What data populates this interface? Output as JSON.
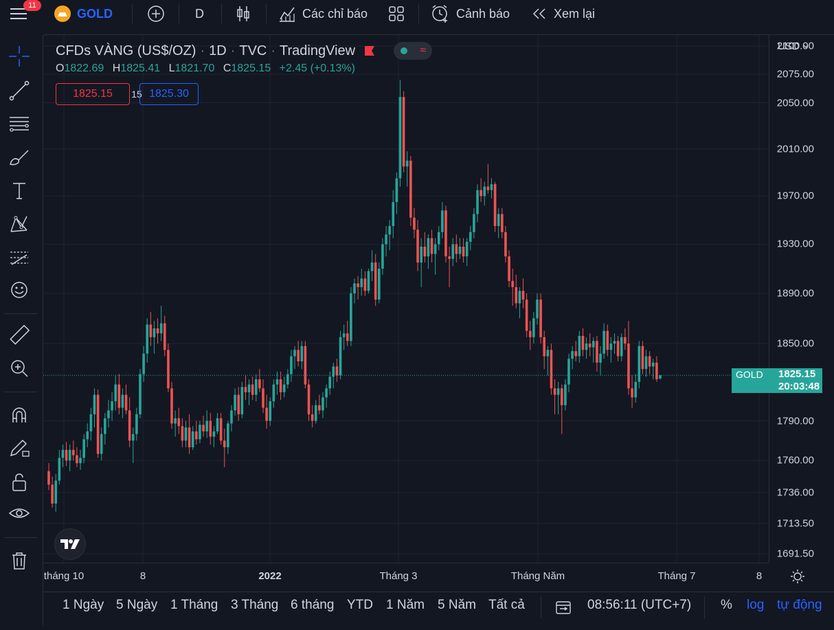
{
  "topbar": {
    "notif_count": "11",
    "symbol": "GOLD",
    "interval": "D",
    "indicators_label": "Các chỉ báo",
    "alerts_label": "Cảnh báo",
    "replay_label": "Xem lại"
  },
  "legend": {
    "title": "CFDs VÀNG (US$/OZ)",
    "interval": "1D",
    "exchange": "TVC",
    "source": "TradingView",
    "o_label": "O",
    "o_value": "1822.69",
    "h_label": "H",
    "h_value": "1825.41",
    "l_label": "L",
    "l_value": "1821.70",
    "c_label": "C",
    "c_value": "1825.15",
    "change": "+2.45 (+0.13%)",
    "sell_price": "1825.15",
    "spread": "15",
    "buy_price": "1825.30"
  },
  "price_axis": {
    "currency": "USD",
    "labels": [
      "2100.00",
      "2075.00",
      "2050.00",
      "2010.00",
      "1970.00",
      "1930.00",
      "1890.00",
      "1850.00",
      "1790.00",
      "1760.00",
      "1736.00",
      "1713.50",
      "1691.50"
    ],
    "last_label": "GOLD",
    "last_price": "1825.15",
    "countdown": "20:03:48"
  },
  "time_axis": {
    "labels": [
      "tháng 10",
      "8",
      "2022",
      "Tháng 3",
      "Tháng Năm",
      "Tháng 7",
      "8"
    ]
  },
  "bottombar": {
    "ranges": [
      "1 Ngày",
      "5 Ngày",
      "1 Tháng",
      "3 Tháng",
      "6 tháng",
      "YTD",
      "1 Năm",
      "5 Năm",
      "Tất cả"
    ],
    "clock": "08:56:11 (UTC+7)",
    "percent": "%",
    "log": "log",
    "auto": "tự động"
  },
  "colors": {
    "up": "#26a69a",
    "down": "#ef5350",
    "background": "#131722",
    "accent": "#2962ff"
  },
  "chart_data": {
    "type": "candlestick",
    "symbol": "GOLD",
    "y_axis": "log",
    "ylim": [
      1685,
      2110
    ],
    "last_price": 1825.15,
    "candles": [
      {
        "o": 1752,
        "h": 1758,
        "l": 1738,
        "c": 1742
      },
      {
        "o": 1742,
        "h": 1748,
        "l": 1725,
        "c": 1728
      },
      {
        "o": 1728,
        "h": 1750,
        "l": 1722,
        "c": 1745
      },
      {
        "o": 1745,
        "h": 1768,
        "l": 1742,
        "c": 1762
      },
      {
        "o": 1762,
        "h": 1772,
        "l": 1755,
        "c": 1768
      },
      {
        "o": 1768,
        "h": 1774,
        "l": 1756,
        "c": 1760
      },
      {
        "o": 1760,
        "h": 1772,
        "l": 1752,
        "c": 1768
      },
      {
        "o": 1768,
        "h": 1775,
        "l": 1760,
        "c": 1764
      },
      {
        "o": 1764,
        "h": 1770,
        "l": 1755,
        "c": 1758
      },
      {
        "o": 1758,
        "h": 1768,
        "l": 1753,
        "c": 1762
      },
      {
        "o": 1762,
        "h": 1780,
        "l": 1758,
        "c": 1776
      },
      {
        "o": 1776,
        "h": 1788,
        "l": 1770,
        "c": 1782
      },
      {
        "o": 1782,
        "h": 1800,
        "l": 1775,
        "c": 1795
      },
      {
        "o": 1795,
        "h": 1815,
        "l": 1785,
        "c": 1810
      },
      {
        "o": 1810,
        "h": 1814,
        "l": 1762,
        "c": 1765
      },
      {
        "o": 1765,
        "h": 1785,
        "l": 1760,
        "c": 1780
      },
      {
        "o": 1780,
        "h": 1796,
        "l": 1772,
        "c": 1792
      },
      {
        "o": 1792,
        "h": 1806,
        "l": 1785,
        "c": 1798
      },
      {
        "o": 1798,
        "h": 1812,
        "l": 1790,
        "c": 1805
      },
      {
        "o": 1805,
        "h": 1825,
        "l": 1798,
        "c": 1818
      },
      {
        "o": 1818,
        "h": 1826,
        "l": 1795,
        "c": 1800
      },
      {
        "o": 1800,
        "h": 1815,
        "l": 1792,
        "c": 1810
      },
      {
        "o": 1810,
        "h": 1818,
        "l": 1795,
        "c": 1798
      },
      {
        "o": 1798,
        "h": 1808,
        "l": 1770,
        "c": 1775
      },
      {
        "o": 1775,
        "h": 1785,
        "l": 1758,
        "c": 1780
      },
      {
        "o": 1780,
        "h": 1800,
        "l": 1775,
        "c": 1795
      },
      {
        "o": 1795,
        "h": 1830,
        "l": 1792,
        "c": 1826
      },
      {
        "o": 1826,
        "h": 1848,
        "l": 1820,
        "c": 1842
      },
      {
        "o": 1842,
        "h": 1870,
        "l": 1835,
        "c": 1865
      },
      {
        "o": 1865,
        "h": 1875,
        "l": 1848,
        "c": 1855
      },
      {
        "o": 1855,
        "h": 1868,
        "l": 1842,
        "c": 1862
      },
      {
        "o": 1862,
        "h": 1870,
        "l": 1850,
        "c": 1858
      },
      {
        "o": 1858,
        "h": 1880,
        "l": 1852,
        "c": 1866
      },
      {
        "o": 1866,
        "h": 1872,
        "l": 1840,
        "c": 1845
      },
      {
        "o": 1845,
        "h": 1850,
        "l": 1812,
        "c": 1815
      },
      {
        "o": 1815,
        "h": 1820,
        "l": 1784,
        "c": 1788
      },
      {
        "o": 1788,
        "h": 1798,
        "l": 1778,
        "c": 1792
      },
      {
        "o": 1792,
        "h": 1800,
        "l": 1780,
        "c": 1786
      },
      {
        "o": 1786,
        "h": 1792,
        "l": 1770,
        "c": 1775
      },
      {
        "o": 1775,
        "h": 1790,
        "l": 1770,
        "c": 1785
      },
      {
        "o": 1785,
        "h": 1795,
        "l": 1765,
        "c": 1770
      },
      {
        "o": 1770,
        "h": 1786,
        "l": 1768,
        "c": 1782
      },
      {
        "o": 1782,
        "h": 1790,
        "l": 1772,
        "c": 1776
      },
      {
        "o": 1776,
        "h": 1790,
        "l": 1773,
        "c": 1787
      },
      {
        "o": 1787,
        "h": 1794,
        "l": 1778,
        "c": 1782
      },
      {
        "o": 1782,
        "h": 1798,
        "l": 1777,
        "c": 1790
      },
      {
        "o": 1790,
        "h": 1796,
        "l": 1772,
        "c": 1778
      },
      {
        "o": 1778,
        "h": 1786,
        "l": 1770,
        "c": 1782
      },
      {
        "o": 1782,
        "h": 1796,
        "l": 1780,
        "c": 1792
      },
      {
        "o": 1792,
        "h": 1796,
        "l": 1772,
        "c": 1775
      },
      {
        "o": 1775,
        "h": 1784,
        "l": 1755,
        "c": 1770
      },
      {
        "o": 1770,
        "h": 1790,
        "l": 1765,
        "c": 1788
      },
      {
        "o": 1788,
        "h": 1802,
        "l": 1782,
        "c": 1798
      },
      {
        "o": 1798,
        "h": 1815,
        "l": 1794,
        "c": 1810
      },
      {
        "o": 1810,
        "h": 1816,
        "l": 1790,
        "c": 1795
      },
      {
        "o": 1795,
        "h": 1820,
        "l": 1792,
        "c": 1816
      },
      {
        "o": 1816,
        "h": 1825,
        "l": 1806,
        "c": 1812
      },
      {
        "o": 1812,
        "h": 1822,
        "l": 1802,
        "c": 1818
      },
      {
        "o": 1818,
        "h": 1824,
        "l": 1806,
        "c": 1810
      },
      {
        "o": 1810,
        "h": 1826,
        "l": 1805,
        "c": 1822
      },
      {
        "o": 1822,
        "h": 1830,
        "l": 1812,
        "c": 1815
      },
      {
        "o": 1815,
        "h": 1822,
        "l": 1796,
        "c": 1800
      },
      {
        "o": 1800,
        "h": 1810,
        "l": 1784,
        "c": 1790
      },
      {
        "o": 1790,
        "h": 1808,
        "l": 1786,
        "c": 1805
      },
      {
        "o": 1805,
        "h": 1822,
        "l": 1800,
        "c": 1818
      },
      {
        "o": 1818,
        "h": 1828,
        "l": 1810,
        "c": 1822
      },
      {
        "o": 1822,
        "h": 1828,
        "l": 1806,
        "c": 1812
      },
      {
        "o": 1812,
        "h": 1824,
        "l": 1808,
        "c": 1818
      },
      {
        "o": 1818,
        "h": 1830,
        "l": 1815,
        "c": 1826
      },
      {
        "o": 1826,
        "h": 1845,
        "l": 1820,
        "c": 1840
      },
      {
        "o": 1840,
        "h": 1848,
        "l": 1830,
        "c": 1845
      },
      {
        "o": 1845,
        "h": 1852,
        "l": 1832,
        "c": 1836
      },
      {
        "o": 1836,
        "h": 1852,
        "l": 1830,
        "c": 1848
      },
      {
        "o": 1848,
        "h": 1852,
        "l": 1815,
        "c": 1818
      },
      {
        "o": 1818,
        "h": 1822,
        "l": 1790,
        "c": 1795
      },
      {
        "o": 1795,
        "h": 1802,
        "l": 1785,
        "c": 1790
      },
      {
        "o": 1790,
        "h": 1806,
        "l": 1788,
        "c": 1802
      },
      {
        "o": 1802,
        "h": 1810,
        "l": 1795,
        "c": 1798
      },
      {
        "o": 1798,
        "h": 1812,
        "l": 1792,
        "c": 1808
      },
      {
        "o": 1808,
        "h": 1818,
        "l": 1800,
        "c": 1815
      },
      {
        "o": 1815,
        "h": 1828,
        "l": 1810,
        "c": 1824
      },
      {
        "o": 1824,
        "h": 1835,
        "l": 1815,
        "c": 1832
      },
      {
        "o": 1832,
        "h": 1838,
        "l": 1820,
        "c": 1825
      },
      {
        "o": 1825,
        "h": 1860,
        "l": 1822,
        "c": 1855
      },
      {
        "o": 1855,
        "h": 1865,
        "l": 1845,
        "c": 1858
      },
      {
        "o": 1858,
        "h": 1868,
        "l": 1848,
        "c": 1852
      },
      {
        "o": 1852,
        "h": 1895,
        "l": 1848,
        "c": 1890
      },
      {
        "o": 1890,
        "h": 1902,
        "l": 1882,
        "c": 1898
      },
      {
        "o": 1898,
        "h": 1904,
        "l": 1885,
        "c": 1895
      },
      {
        "o": 1895,
        "h": 1910,
        "l": 1888,
        "c": 1902
      },
      {
        "o": 1902,
        "h": 1908,
        "l": 1888,
        "c": 1892
      },
      {
        "o": 1892,
        "h": 1910,
        "l": 1890,
        "c": 1908
      },
      {
        "o": 1908,
        "h": 1925,
        "l": 1900,
        "c": 1915
      },
      {
        "o": 1915,
        "h": 1922,
        "l": 1880,
        "c": 1885
      },
      {
        "o": 1885,
        "h": 1915,
        "l": 1882,
        "c": 1910
      },
      {
        "o": 1910,
        "h": 1935,
        "l": 1905,
        "c": 1930
      },
      {
        "o": 1930,
        "h": 1945,
        "l": 1920,
        "c": 1938
      },
      {
        "o": 1938,
        "h": 1950,
        "l": 1925,
        "c": 1945
      },
      {
        "o": 1945,
        "h": 1975,
        "l": 1935,
        "c": 1965
      },
      {
        "o": 1965,
        "h": 1990,
        "l": 1955,
        "c": 1985
      },
      {
        "o": 1985,
        "h": 2070,
        "l": 1978,
        "c": 2055
      },
      {
        "o": 2055,
        "h": 2060,
        "l": 1990,
        "c": 1995
      },
      {
        "o": 1995,
        "h": 2008,
        "l": 1978,
        "c": 2000
      },
      {
        "o": 2000,
        "h": 2004,
        "l": 1945,
        "c": 1952
      },
      {
        "o": 1952,
        "h": 1960,
        "l": 1935,
        "c": 1942
      },
      {
        "o": 1942,
        "h": 1950,
        "l": 1908,
        "c": 1915
      },
      {
        "o": 1915,
        "h": 1935,
        "l": 1895,
        "c": 1928
      },
      {
        "o": 1928,
        "h": 1940,
        "l": 1915,
        "c": 1920
      },
      {
        "o": 1920,
        "h": 1938,
        "l": 1910,
        "c": 1935
      },
      {
        "o": 1935,
        "h": 1942,
        "l": 1915,
        "c": 1922
      },
      {
        "o": 1922,
        "h": 1935,
        "l": 1905,
        "c": 1930
      },
      {
        "o": 1930,
        "h": 1945,
        "l": 1925,
        "c": 1940
      },
      {
        "o": 1940,
        "h": 1965,
        "l": 1935,
        "c": 1958
      },
      {
        "o": 1958,
        "h": 1962,
        "l": 1915,
        "c": 1920
      },
      {
        "o": 1920,
        "h": 1928,
        "l": 1895,
        "c": 1918
      },
      {
        "o": 1918,
        "h": 1935,
        "l": 1912,
        "c": 1930
      },
      {
        "o": 1930,
        "h": 1938,
        "l": 1915,
        "c": 1922
      },
      {
        "o": 1922,
        "h": 1935,
        "l": 1918,
        "c": 1928
      },
      {
        "o": 1928,
        "h": 1935,
        "l": 1915,
        "c": 1920
      },
      {
        "o": 1920,
        "h": 1935,
        "l": 1912,
        "c": 1932
      },
      {
        "o": 1932,
        "h": 1945,
        "l": 1925,
        "c": 1940
      },
      {
        "o": 1940,
        "h": 1960,
        "l": 1935,
        "c": 1955
      },
      {
        "o": 1955,
        "h": 1980,
        "l": 1948,
        "c": 1975
      },
      {
        "o": 1975,
        "h": 1985,
        "l": 1965,
        "c": 1970
      },
      {
        "o": 1970,
        "h": 1982,
        "l": 1962,
        "c": 1978
      },
      {
        "o": 1978,
        "h": 1997,
        "l": 1972,
        "c": 1975
      },
      {
        "o": 1975,
        "h": 1985,
        "l": 1968,
        "c": 1980
      },
      {
        "o": 1980,
        "h": 1982,
        "l": 1940,
        "c": 1945
      },
      {
        "o": 1945,
        "h": 1960,
        "l": 1935,
        "c": 1955
      },
      {
        "o": 1955,
        "h": 1960,
        "l": 1935,
        "c": 1940
      },
      {
        "o": 1940,
        "h": 1945,
        "l": 1915,
        "c": 1920
      },
      {
        "o": 1920,
        "h": 1925,
        "l": 1895,
        "c": 1900
      },
      {
        "o": 1900,
        "h": 1910,
        "l": 1880,
        "c": 1895
      },
      {
        "o": 1895,
        "h": 1905,
        "l": 1878,
        "c": 1882
      },
      {
        "o": 1882,
        "h": 1895,
        "l": 1870,
        "c": 1892
      },
      {
        "o": 1892,
        "h": 1902,
        "l": 1878,
        "c": 1885
      },
      {
        "o": 1885,
        "h": 1890,
        "l": 1855,
        "c": 1860
      },
      {
        "o": 1860,
        "h": 1868,
        "l": 1845,
        "c": 1855
      },
      {
        "o": 1855,
        "h": 1875,
        "l": 1850,
        "c": 1870
      },
      {
        "o": 1870,
        "h": 1890,
        "l": 1865,
        "c": 1885
      },
      {
        "o": 1885,
        "h": 1890,
        "l": 1850,
        "c": 1855
      },
      {
        "o": 1855,
        "h": 1860,
        "l": 1830,
        "c": 1840
      },
      {
        "o": 1840,
        "h": 1848,
        "l": 1825,
        "c": 1845
      },
      {
        "o": 1845,
        "h": 1850,
        "l": 1810,
        "c": 1815
      },
      {
        "o": 1815,
        "h": 1822,
        "l": 1795,
        "c": 1810
      },
      {
        "o": 1810,
        "h": 1820,
        "l": 1795,
        "c": 1815
      },
      {
        "o": 1815,
        "h": 1818,
        "l": 1780,
        "c": 1802
      },
      {
        "o": 1802,
        "h": 1822,
        "l": 1798,
        "c": 1818
      },
      {
        "o": 1818,
        "h": 1842,
        "l": 1812,
        "c": 1838
      },
      {
        "o": 1838,
        "h": 1848,
        "l": 1830,
        "c": 1844
      },
      {
        "o": 1844,
        "h": 1852,
        "l": 1836,
        "c": 1840
      },
      {
        "o": 1840,
        "h": 1860,
        "l": 1835,
        "c": 1856
      },
      {
        "o": 1856,
        "h": 1862,
        "l": 1840,
        "c": 1845
      },
      {
        "o": 1845,
        "h": 1855,
        "l": 1838,
        "c": 1850
      },
      {
        "o": 1850,
        "h": 1858,
        "l": 1840,
        "c": 1847
      },
      {
        "o": 1847,
        "h": 1855,
        "l": 1835,
        "c": 1852
      },
      {
        "o": 1852,
        "h": 1856,
        "l": 1828,
        "c": 1835
      },
      {
        "o": 1835,
        "h": 1848,
        "l": 1825,
        "c": 1842
      },
      {
        "o": 1842,
        "h": 1866,
        "l": 1838,
        "c": 1860
      },
      {
        "o": 1860,
        "h": 1865,
        "l": 1840,
        "c": 1845
      },
      {
        "o": 1845,
        "h": 1855,
        "l": 1835,
        "c": 1850
      },
      {
        "o": 1850,
        "h": 1858,
        "l": 1842,
        "c": 1852
      },
      {
        "o": 1852,
        "h": 1856,
        "l": 1836,
        "c": 1840
      },
      {
        "o": 1840,
        "h": 1858,
        "l": 1836,
        "c": 1855
      },
      {
        "o": 1855,
        "h": 1862,
        "l": 1845,
        "c": 1850
      },
      {
        "o": 1850,
        "h": 1868,
        "l": 1810,
        "c": 1815
      },
      {
        "o": 1815,
        "h": 1825,
        "l": 1800,
        "c": 1808
      },
      {
        "o": 1808,
        "h": 1826,
        "l": 1804,
        "c": 1820
      },
      {
        "o": 1820,
        "h": 1852,
        "l": 1815,
        "c": 1848
      },
      {
        "o": 1848,
        "h": 1852,
        "l": 1826,
        "c": 1830
      },
      {
        "o": 1830,
        "h": 1845,
        "l": 1824,
        "c": 1840
      },
      {
        "o": 1840,
        "h": 1844,
        "l": 1826,
        "c": 1832
      },
      {
        "o": 1832,
        "h": 1838,
        "l": 1822,
        "c": 1835
      },
      {
        "o": 1835,
        "h": 1840,
        "l": 1820,
        "c": 1822
      },
      {
        "o": 1822.69,
        "h": 1825.41,
        "l": 1821.7,
        "c": 1825.15
      }
    ]
  }
}
